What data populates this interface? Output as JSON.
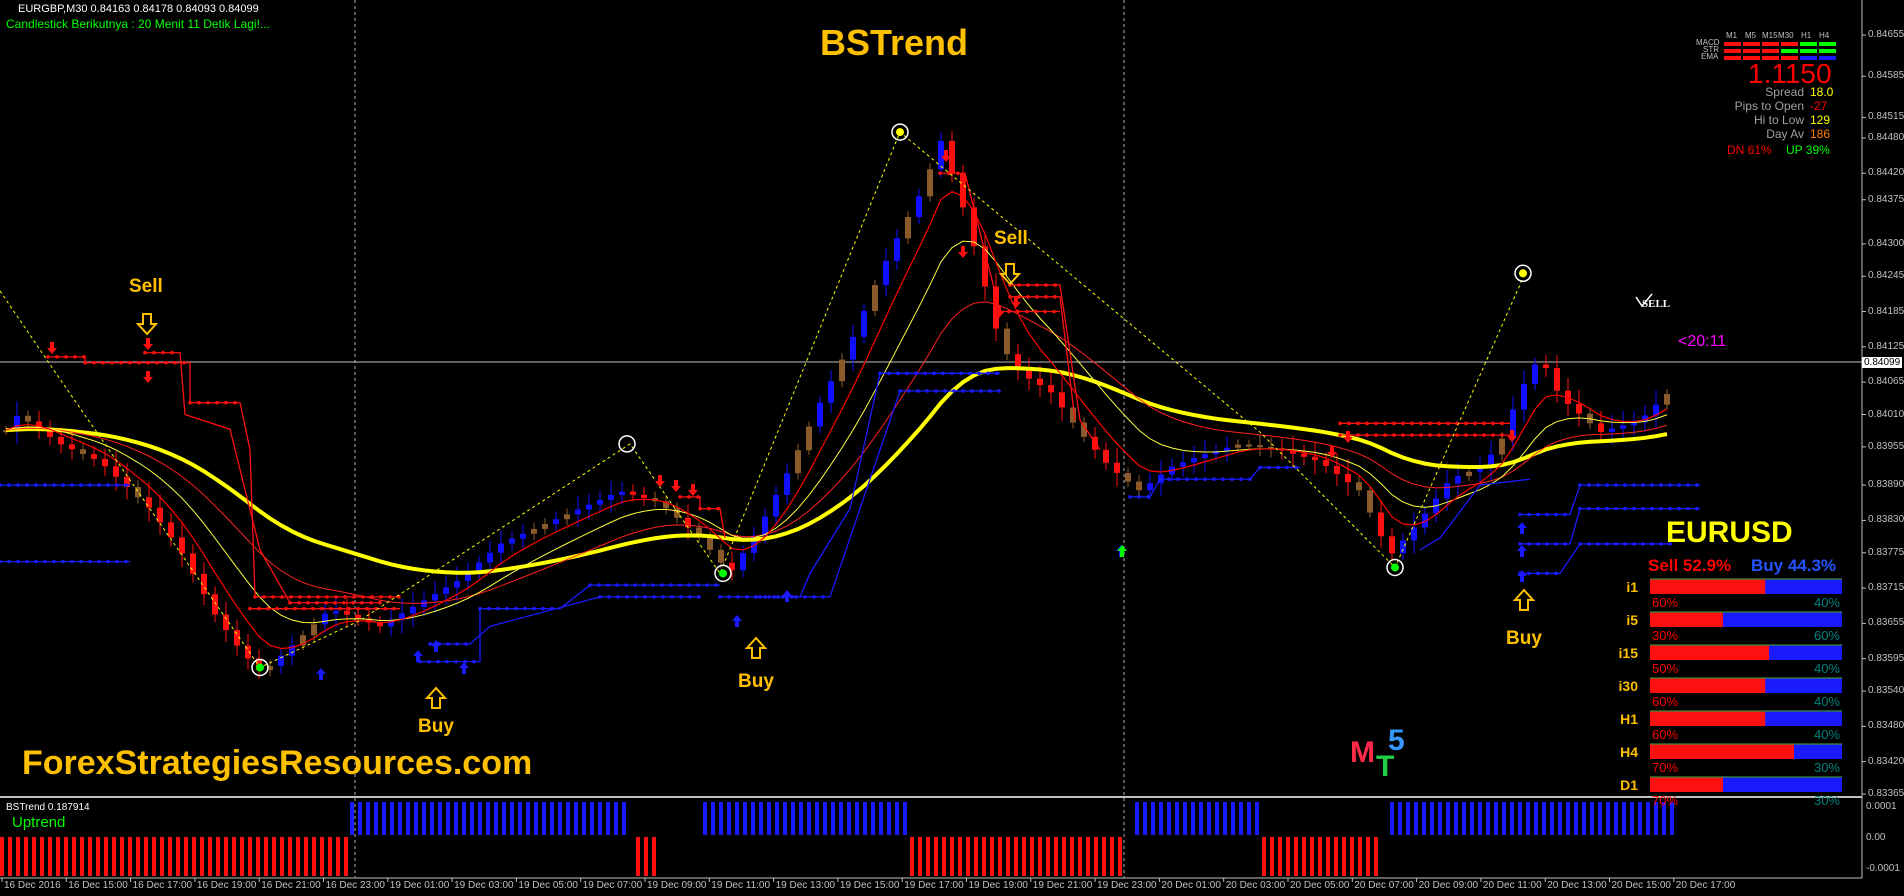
{
  "symbol_header": "EURGBP,M30  0.84163 0.84178 0.84093 0.84099",
  "countdown_text": "Candlestick Berikutnya : 20 Menit 11 Detik Lagi!...",
  "indicator_title": "BSTrend",
  "site_name": "ForexStrategiesResources.com",
  "current_price_label": "0.84099",
  "timer_label": "<20:11",
  "sell_marker": "SELL",
  "mt5": {
    "m": "M",
    "t": "T",
    "five": "5"
  },
  "info_panel": {
    "tf_headers": [
      "M1",
      "M5",
      "M15",
      "M30",
      "H1",
      "H4"
    ],
    "row_labels": [
      "MACD",
      "STR",
      "EMA"
    ],
    "price": "1.1150",
    "stats": [
      {
        "label": "Spread",
        "value": "18.0",
        "color": "#ffff00"
      },
      {
        "label": "Pips to Open",
        "value": "-27",
        "color": "#ff0000"
      },
      {
        "label": "Hi to Low",
        "value": "129",
        "color": "#ffff00"
      },
      {
        "label": "Day Av",
        "value": "186",
        "color": "#ff8000"
      }
    ],
    "dn": "DN 61%",
    "up": "UP 39%"
  },
  "strength_panel": {
    "symbol": "EURUSD",
    "sell": "Sell 52.9%",
    "buy": "Buy 44.3%",
    "rows": [
      {
        "tf": "i1",
        "sell": "60%",
        "buy": "40%",
        "frac": 0.6
      },
      {
        "tf": "i5",
        "sell": "30%",
        "buy": "60%",
        "frac": 0.38
      },
      {
        "tf": "i15",
        "sell": "50%",
        "buy": "40%",
        "frac": 0.62
      },
      {
        "tf": "i30",
        "sell": "60%",
        "buy": "40%",
        "frac": 0.6
      },
      {
        "tf": "H1",
        "sell": "60%",
        "buy": "40%",
        "frac": 0.6
      },
      {
        "tf": "H4",
        "sell": "70%",
        "buy": "30%",
        "frac": 0.75
      },
      {
        "tf": "D1",
        "sell": "70%",
        "buy": "30%",
        "frac": 0.38
      }
    ]
  },
  "signals": {
    "sell": [
      "Sell",
      "Sell"
    ],
    "buy": [
      "Buy",
      "Buy",
      "Buy"
    ]
  },
  "price_axis": [
    "0.84655",
    "0.84585",
    "0.84515",
    "0.84480",
    "0.84420",
    "0.84375",
    "0.84300",
    "0.84245",
    "0.84185",
    "0.84125",
    "0.84065",
    "0.84010",
    "0.83955",
    "0.83890",
    "0.83830",
    "0.83775",
    "0.83715",
    "0.83655",
    "0.83595",
    "0.83540",
    "0.83480",
    "0.83420",
    "0.83365"
  ],
  "indicator_window": {
    "title": "BSTrend 0.187914",
    "state": "Uptrend",
    "axis": [
      "0.0001",
      "0.00",
      "-0.0001"
    ]
  },
  "time_axis": [
    "16 Dec 2016",
    "16 Dec 15:00",
    "16 Dec 17:00",
    "16 Dec 19:00",
    "16 Dec 21:00",
    "16 Dec 23:00",
    "19 Dec 01:00",
    "19 Dec 03:00",
    "19 Dec 05:00",
    "19 Dec 07:00",
    "19 Dec 09:00",
    "19 Dec 11:00",
    "19 Dec 13:00",
    "19 Dec 15:00",
    "19 Dec 17:00",
    "19 Dec 19:00",
    "19 Dec 21:00",
    "19 Dec 23:00",
    "20 Dec 01:00",
    "20 Dec 03:00",
    "20 Dec 05:00",
    "20 Dec 07:00",
    "20 Dec 09:00",
    "20 Dec 11:00",
    "20 Dec 13:00",
    "20 Dec 15:00",
    "20 Dec 17:00"
  ],
  "colors": {
    "background": "#000000",
    "bull_candle": "#1010ff",
    "bear_candle": "#ff1010",
    "doji_candle": "#8b5a2b",
    "ema_slow": "#ffff00",
    "signal_text": "#ffc000",
    "uptrend": "#00ff00"
  }
}
